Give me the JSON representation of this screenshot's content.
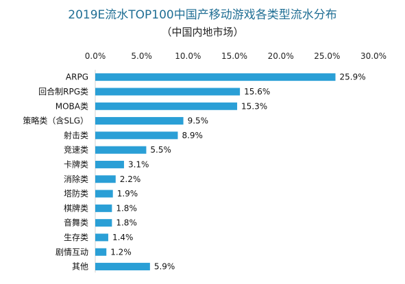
{
  "chart_data": {
    "type": "bar",
    "orientation": "horizontal",
    "title": "2019E流水TOP100中国产移动游戏各类型流水分布",
    "subtitle": "（中国内地市场）",
    "categories": [
      "ARPG",
      "回合制RPG类",
      "MOBA类",
      "策略类（含SLG）",
      "射击类",
      "竞速类",
      "卡牌类",
      "消除类",
      "塔防类",
      "棋牌类",
      "音舞类",
      "生存类",
      "剧情互动",
      "其他"
    ],
    "values": [
      25.9,
      15.6,
      15.3,
      9.5,
      8.9,
      5.5,
      3.1,
      2.2,
      1.9,
      1.8,
      1.8,
      1.4,
      1.2,
      5.9
    ],
    "value_labels": [
      "25.9%",
      "15.6%",
      "15.3%",
      "9.5%",
      "8.9%",
      "5.5%",
      "3.1%",
      "2.2%",
      "1.9%",
      "1.8%",
      "1.8%",
      "1.4%",
      "1.2%",
      "5.9%"
    ],
    "x_ticks": [
      "0.0%",
      "5.0%",
      "10.0%",
      "15.0%",
      "20.0%",
      "25.0%",
      "30.0%"
    ],
    "xlim": [
      0,
      30
    ],
    "xaxis_position": "top",
    "grid": false,
    "legend": "none",
    "bar_color": "#2a9fd6"
  }
}
